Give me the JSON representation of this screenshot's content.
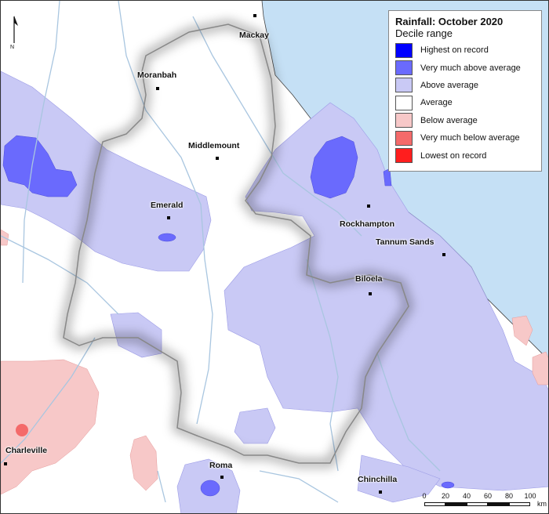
{
  "legend": {
    "title": "Rainfall: October 2020",
    "subtitle": "Decile range",
    "items": [
      {
        "label": "Highest on record",
        "color": "#0000ff"
      },
      {
        "label": "Very much above average",
        "color": "#6a6afd"
      },
      {
        "label": "Above average",
        "color": "#c9c9f5"
      },
      {
        "label": "Average",
        "color": "#ffffff"
      },
      {
        "label": "Below average",
        "color": "#f7c8c8"
      },
      {
        "label": "Very much below average",
        "color": "#f46a6a"
      },
      {
        "label": "Lowest on record",
        "color": "#ff1e1e"
      }
    ]
  },
  "north_arrow": {
    "letter": "N"
  },
  "places": [
    {
      "id": "mackay",
      "name": "Mackay"
    },
    {
      "id": "moranbah",
      "name": "Moranbah"
    },
    {
      "id": "middlemount",
      "name": "Middlemount"
    },
    {
      "id": "emerald",
      "name": "Emerald"
    },
    {
      "id": "rockhampton",
      "name": "Rockhampton"
    },
    {
      "id": "tannum-sands",
      "name": "Tannum Sands"
    },
    {
      "id": "biloela",
      "name": "Biloela"
    },
    {
      "id": "charleville",
      "name": "Charleville"
    },
    {
      "id": "roma",
      "name": "Roma"
    },
    {
      "id": "chinchilla",
      "name": "Chinchilla"
    }
  ],
  "scale_bar": {
    "ticks": [
      "0",
      "20",
      "40",
      "60",
      "80",
      "100"
    ],
    "unit": "km"
  },
  "colors": {
    "sea": "#c5e0f5",
    "river": "#a9c6e0",
    "boundary": "#888888"
  }
}
